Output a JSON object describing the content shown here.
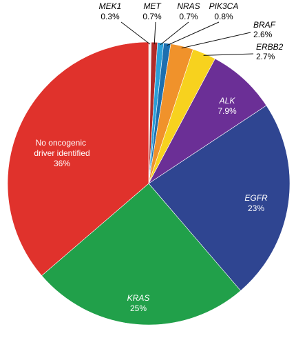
{
  "chart_data": {
    "type": "pie",
    "title": "",
    "slices": [
      {
        "name": "MEK1",
        "label": "0.3%",
        "value": 0.3,
        "color": "#f2f2f2"
      },
      {
        "name": "MET",
        "label": "0.7%",
        "value": 0.7,
        "color": "#b02a28"
      },
      {
        "name": "NRAS",
        "label": "0.7%",
        "value": 0.7,
        "color": "#2a9fd8"
      },
      {
        "name": "PIK3CA",
        "label": "0.8%",
        "value": 0.8,
        "color": "#1c6fb0"
      },
      {
        "name": "BRAF",
        "label": "2.6%",
        "value": 2.6,
        "color": "#f0922b"
      },
      {
        "name": "ERBB2",
        "label": "2.7%",
        "value": 2.7,
        "color": "#f7d21e"
      },
      {
        "name": "ALK",
        "label": "7.9%",
        "value": 7.9,
        "color": "#6b2f96"
      },
      {
        "name": "EGFR",
        "label": "23%",
        "value": 23,
        "color": "#2f4591"
      },
      {
        "name": "KRAS",
        "label": "25%",
        "value": 25,
        "color": "#21a04a"
      },
      {
        "name": "No oncogenic driver identified",
        "label": "36%",
        "value": 36.3,
        "color": "#e0322c"
      }
    ]
  }
}
